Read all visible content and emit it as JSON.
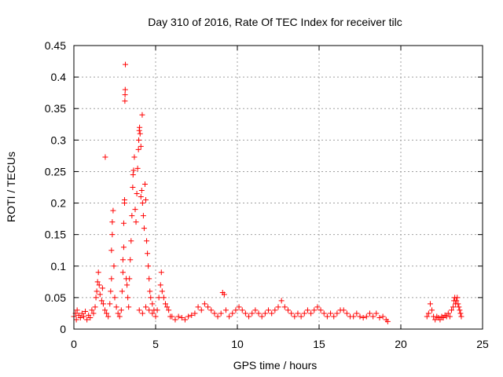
{
  "chart_data": {
    "type": "scatter",
    "title": "Day 310 of 2016, Rate Of TEC Index for receiver tilc",
    "xlabel": "GPS time / hours",
    "ylabel": "ROTI / TECUs",
    "xlim": [
      0,
      25
    ],
    "ylim": [
      0,
      0.45
    ],
    "x_ticks": [
      "0",
      "5",
      "10",
      "15",
      "20",
      "25"
    ],
    "y_ticks": [
      "0",
      "0.05",
      "0.1",
      "0.15",
      "0.2",
      "0.25",
      "0.3",
      "0.35",
      "0.4",
      "0.45"
    ],
    "grid": true,
    "marker": "plus",
    "color": "#ff0000",
    "series": [
      {
        "name": "",
        "points": [
          [
            0.0,
            0.02
          ],
          [
            0.1,
            0.025
          ],
          [
            0.15,
            0.015
          ],
          [
            0.2,
            0.03
          ],
          [
            0.3,
            0.022
          ],
          [
            0.4,
            0.018
          ],
          [
            0.5,
            0.025
          ],
          [
            0.6,
            0.02
          ],
          [
            0.7,
            0.028
          ],
          [
            0.8,
            0.015
          ],
          [
            0.9,
            0.022
          ],
          [
            1.0,
            0.018
          ],
          [
            1.1,
            0.03
          ],
          [
            1.2,
            0.025
          ],
          [
            1.3,
            0.035
          ],
          [
            1.35,
            0.05
          ],
          [
            1.4,
            0.06
          ],
          [
            1.45,
            0.075
          ],
          [
            1.5,
            0.09
          ],
          [
            1.55,
            0.07
          ],
          [
            1.6,
            0.055
          ],
          [
            1.7,
            0.045
          ],
          [
            1.75,
            0.065
          ],
          [
            1.8,
            0.04
          ],
          [
            1.9,
            0.03
          ],
          [
            2.0,
            0.025
          ],
          [
            2.1,
            0.02
          ],
          [
            1.92,
            0.273
          ],
          [
            2.2,
            0.04
          ],
          [
            2.25,
            0.06
          ],
          [
            2.3,
            0.08
          ],
          [
            2.3,
            0.125
          ],
          [
            2.35,
            0.15
          ],
          [
            2.35,
            0.17
          ],
          [
            2.4,
            0.188
          ],
          [
            2.45,
            0.1
          ],
          [
            2.5,
            0.05
          ],
          [
            2.6,
            0.035
          ],
          [
            2.7,
            0.025
          ],
          [
            2.8,
            0.02
          ],
          [
            2.9,
            0.03
          ],
          [
            2.95,
            0.06
          ],
          [
            3.0,
            0.09
          ],
          [
            3.0,
            0.11
          ],
          [
            3.05,
            0.13
          ],
          [
            3.05,
            0.168
          ],
          [
            3.1,
            0.2
          ],
          [
            3.1,
            0.205
          ],
          [
            3.12,
            0.362
          ],
          [
            3.13,
            0.372
          ],
          [
            3.14,
            0.38
          ],
          [
            3.15,
            0.42
          ],
          [
            3.2,
            0.08
          ],
          [
            3.25,
            0.07
          ],
          [
            3.3,
            0.05
          ],
          [
            3.35,
            0.035
          ],
          [
            3.4,
            0.08
          ],
          [
            3.45,
            0.11
          ],
          [
            3.5,
            0.14
          ],
          [
            3.55,
            0.18
          ],
          [
            3.6,
            0.225
          ],
          [
            3.62,
            0.245
          ],
          [
            3.65,
            0.252
          ],
          [
            3.7,
            0.273
          ],
          [
            3.75,
            0.19
          ],
          [
            3.8,
            0.17
          ],
          [
            3.85,
            0.215
          ],
          [
            3.9,
            0.255
          ],
          [
            3.95,
            0.285
          ],
          [
            3.97,
            0.3
          ],
          [
            4.0,
            0.315
          ],
          [
            4.02,
            0.32
          ],
          [
            4.05,
            0.31
          ],
          [
            4.1,
            0.29
          ],
          [
            4.1,
            0.21
          ],
          [
            4.15,
            0.22
          ],
          [
            4.18,
            0.34
          ],
          [
            4.2,
            0.2
          ],
          [
            4.25,
            0.18
          ],
          [
            4.3,
            0.16
          ],
          [
            4.35,
            0.23
          ],
          [
            4.4,
            0.205
          ],
          [
            4.45,
            0.14
          ],
          [
            4.5,
            0.12
          ],
          [
            4.55,
            0.1
          ],
          [
            4.6,
            0.08
          ],
          [
            4.65,
            0.06
          ],
          [
            4.7,
            0.05
          ],
          [
            4.8,
            0.04
          ],
          [
            4.9,
            0.03
          ],
          [
            4.0,
            0.03
          ],
          [
            4.2,
            0.025
          ],
          [
            4.4,
            0.035
          ],
          [
            4.6,
            0.03
          ],
          [
            4.8,
            0.025
          ],
          [
            5.0,
            0.02
          ],
          [
            5.1,
            0.03
          ],
          [
            5.2,
            0.05
          ],
          [
            5.3,
            0.07
          ],
          [
            5.35,
            0.09
          ],
          [
            5.4,
            0.06
          ],
          [
            5.5,
            0.05
          ],
          [
            5.6,
            0.04
          ],
          [
            5.7,
            0.035
          ],
          [
            5.8,
            0.03
          ],
          [
            5.9,
            0.02
          ],
          [
            6.0,
            0.02
          ],
          [
            6.2,
            0.015
          ],
          [
            6.4,
            0.02
          ],
          [
            6.6,
            0.018
          ],
          [
            6.8,
            0.015
          ],
          [
            7.0,
            0.02
          ],
          [
            7.2,
            0.022
          ],
          [
            7.4,
            0.025
          ],
          [
            7.6,
            0.035
          ],
          [
            7.8,
            0.03
          ],
          [
            8.0,
            0.04
          ],
          [
            8.2,
            0.035
          ],
          [
            8.4,
            0.03
          ],
          [
            8.6,
            0.025
          ],
          [
            8.8,
            0.02
          ],
          [
            9.0,
            0.025
          ],
          [
            9.1,
            0.058
          ],
          [
            9.2,
            0.055
          ],
          [
            9.3,
            0.03
          ],
          [
            9.5,
            0.02
          ],
          [
            9.7,
            0.025
          ],
          [
            9.9,
            0.03
          ],
          [
            10.1,
            0.035
          ],
          [
            10.3,
            0.03
          ],
          [
            10.5,
            0.025
          ],
          [
            10.7,
            0.02
          ],
          [
            10.9,
            0.025
          ],
          [
            11.1,
            0.03
          ],
          [
            11.3,
            0.025
          ],
          [
            11.5,
            0.02
          ],
          [
            11.7,
            0.025
          ],
          [
            11.9,
            0.03
          ],
          [
            12.1,
            0.025
          ],
          [
            12.3,
            0.03
          ],
          [
            12.5,
            0.035
          ],
          [
            12.7,
            0.045
          ],
          [
            12.9,
            0.035
          ],
          [
            13.1,
            0.03
          ],
          [
            13.3,
            0.025
          ],
          [
            13.5,
            0.02
          ],
          [
            13.7,
            0.025
          ],
          [
            13.9,
            0.02
          ],
          [
            14.1,
            0.025
          ],
          [
            14.3,
            0.03
          ],
          [
            14.5,
            0.025
          ],
          [
            14.7,
            0.03
          ],
          [
            14.9,
            0.035
          ],
          [
            15.1,
            0.03
          ],
          [
            15.3,
            0.025
          ],
          [
            15.5,
            0.02
          ],
          [
            15.7,
            0.025
          ],
          [
            15.9,
            0.02
          ],
          [
            16.1,
            0.025
          ],
          [
            16.3,
            0.03
          ],
          [
            16.5,
            0.03
          ],
          [
            16.7,
            0.025
          ],
          [
            16.9,
            0.02
          ],
          [
            17.1,
            0.02
          ],
          [
            17.3,
            0.025
          ],
          [
            17.5,
            0.02
          ],
          [
            17.7,
            0.018
          ],
          [
            17.9,
            0.02
          ],
          [
            18.1,
            0.025
          ],
          [
            18.3,
            0.02
          ],
          [
            18.5,
            0.025
          ],
          [
            18.7,
            0.018
          ],
          [
            18.9,
            0.02
          ],
          [
            19.1,
            0.015
          ],
          [
            19.2,
            0.012
          ],
          [
            21.6,
            0.02
          ],
          [
            21.7,
            0.025
          ],
          [
            21.8,
            0.04
          ],
          [
            21.9,
            0.03
          ],
          [
            22.0,
            0.02
          ],
          [
            22.1,
            0.015
          ],
          [
            22.2,
            0.02
          ],
          [
            22.3,
            0.018
          ],
          [
            22.4,
            0.015
          ],
          [
            22.5,
            0.02
          ],
          [
            22.6,
            0.018
          ],
          [
            22.7,
            0.022
          ],
          [
            22.8,
            0.02
          ],
          [
            22.9,
            0.025
          ],
          [
            23.0,
            0.02
          ],
          [
            23.1,
            0.03
          ],
          [
            23.2,
            0.035
          ],
          [
            23.25,
            0.045
          ],
          [
            23.3,
            0.05
          ],
          [
            23.35,
            0.04
          ],
          [
            23.4,
            0.045
          ],
          [
            23.45,
            0.05
          ],
          [
            23.5,
            0.04
          ],
          [
            23.55,
            0.035
          ],
          [
            23.6,
            0.03
          ],
          [
            23.65,
            0.025
          ],
          [
            23.7,
            0.02
          ]
        ]
      }
    ]
  }
}
